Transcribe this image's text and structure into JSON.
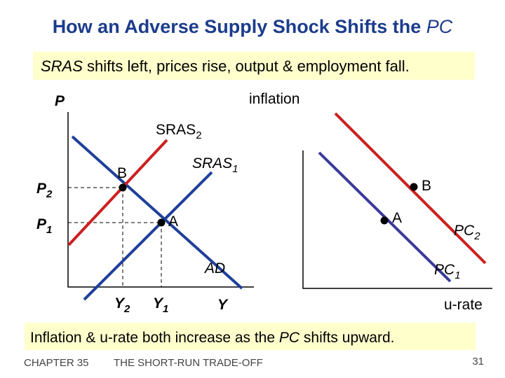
{
  "header": {
    "title": {
      "text": "How an Adverse Supply Shock Shifts the ",
      "emphasis": "PC"
    },
    "subtitle": {
      "emphasis": "SRAS",
      "text": " shifts left, prices rise, output & employment fall."
    }
  },
  "left_diagram": {
    "y_axis_label": "P",
    "x_axis_label": "Y",
    "curves": {
      "sras2": {
        "label": "SRAS",
        "subscript": "2"
      },
      "sras1": {
        "label": "SRAS",
        "subscript": "1"
      },
      "ad": {
        "label": "AD"
      }
    },
    "points": {
      "b": "B",
      "a": "A"
    },
    "price_levels": {
      "p2": {
        "label": "P",
        "subscript": "2"
      },
      "p1": {
        "label": "P",
        "subscript": "1"
      }
    },
    "outputs": {
      "y2": {
        "label": "Y",
        "subscript": "2"
      },
      "y1": {
        "label": "Y",
        "subscript": "1"
      }
    }
  },
  "right_diagram": {
    "y_axis_label": "inflation",
    "x_axis_label": "u-rate",
    "points": {
      "b": "B",
      "a": "A"
    },
    "curves": {
      "pc2": {
        "label": "PC",
        "subscript": "2"
      },
      "pc1": {
        "label": "PC",
        "subscript": "1"
      }
    }
  },
  "conclusion": {
    "before": "Inflation & u-rate both increase as the ",
    "emphasis": "PC",
    "after": " shifts upward."
  },
  "footer": {
    "chapter": "CHAPTER 35",
    "chapter_title": "THE SHORT-RUN TRADE-OFF",
    "page": "31"
  }
}
